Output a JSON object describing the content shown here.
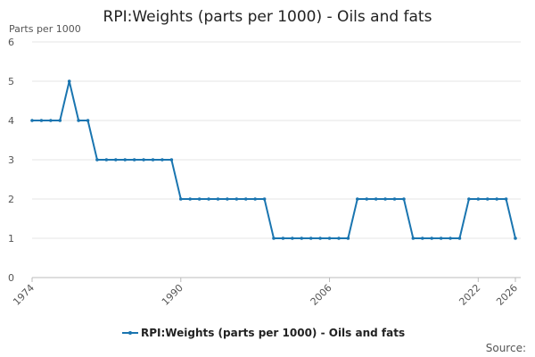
{
  "chart_data": {
    "type": "line",
    "title": "RPI:Weights (parts per 1000) - Oils and fats",
    "y_label": "Parts per 1000",
    "source": "Source:",
    "x": [
      1974,
      1975,
      1976,
      1977,
      1978,
      1979,
      1980,
      1981,
      1982,
      1983,
      1984,
      1985,
      1986,
      1987,
      1988,
      1989,
      1990,
      1991,
      1992,
      1993,
      1994,
      1995,
      1996,
      1997,
      1998,
      1999,
      2000,
      2001,
      2002,
      2003,
      2004,
      2005,
      2006,
      2007,
      2008,
      2009,
      2010,
      2011,
      2012,
      2013,
      2014,
      2015,
      2016,
      2017,
      2018,
      2019,
      2020,
      2021,
      2022,
      2023,
      2024,
      2025,
      2026
    ],
    "series": [
      {
        "name": "RPI:Weights (parts per 1000) - Oils and fats",
        "color": "#1a75b0",
        "values": [
          4,
          4,
          4,
          4,
          5,
          4,
          4,
          3,
          3,
          3,
          3,
          3,
          3,
          3,
          3,
          3,
          2,
          2,
          2,
          2,
          2,
          2,
          2,
          2,
          2,
          2,
          1,
          1,
          1,
          1,
          1,
          1,
          1,
          1,
          1,
          2,
          2,
          2,
          2,
          2,
          2,
          1,
          1,
          1,
          1,
          1,
          1,
          2,
          2,
          2,
          2,
          2,
          1
        ]
      }
    ],
    "xlim": [
      1974,
      2026
    ],
    "xticks": [
      1974,
      1990,
      2006,
      2022,
      2026
    ],
    "ylim": [
      0,
      6
    ],
    "yticks": [
      0,
      1,
      2,
      3,
      4,
      5,
      6
    ],
    "grid": true
  }
}
